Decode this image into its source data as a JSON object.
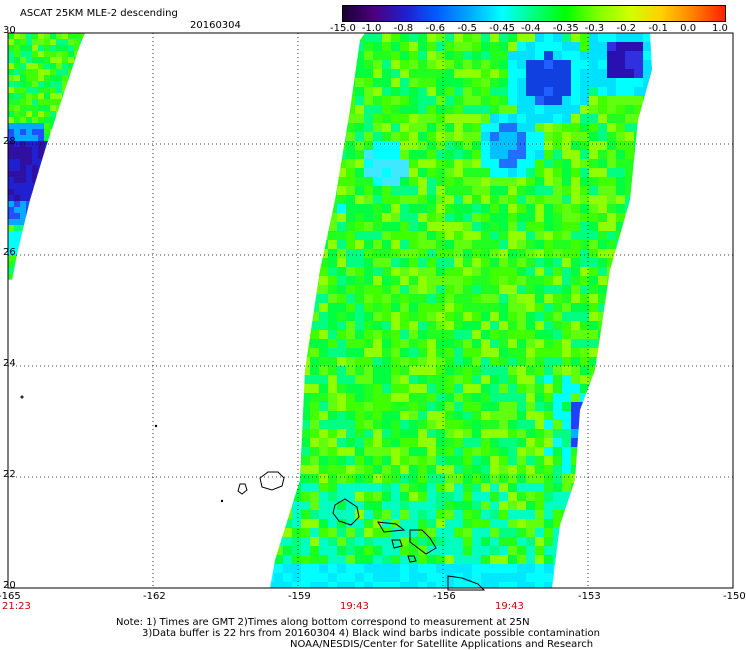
{
  "header": {
    "title": "ASCAT 25KM MLE-2 descending",
    "date": "20160304"
  },
  "colorbar": {
    "tick_labels": [
      "-15.0",
      "-1.0",
      "-0.8",
      "-0.6",
      "-0.5",
      "-0.45",
      "-0.4",
      "-0.35",
      "-0.3",
      "-0.2",
      "-0.1",
      "0.0",
      "1.0"
    ],
    "colors": [
      "#1a0033",
      "#4b0080",
      "#2020d0",
      "#0060ff",
      "#00aaff",
      "#00ffff",
      "#00ff80",
      "#00ff00",
      "#80ff00",
      "#d0ff00",
      "#ffd000",
      "#ff8000",
      "#ff2000"
    ]
  },
  "axes": {
    "lon_labels": [
      "-165",
      "-162",
      "-159",
      "-156",
      "-153",
      "-150"
    ],
    "lat_labels": [
      "30",
      "28",
      "26",
      "24",
      "22",
      "20"
    ]
  },
  "pass_times": [
    "21:23",
    "19:43",
    "19:43"
  ],
  "notes": {
    "line1": "Note: 1) Times are GMT 2)Times along bottom correspond to measurement at 25N",
    "line2": "3)Data buffer is 22 hrs from 20160304 4) Black wind barbs indicate possible contamination",
    "line3": "NOAA/NESDIS/Center for Satellite Applications and Research"
  }
}
